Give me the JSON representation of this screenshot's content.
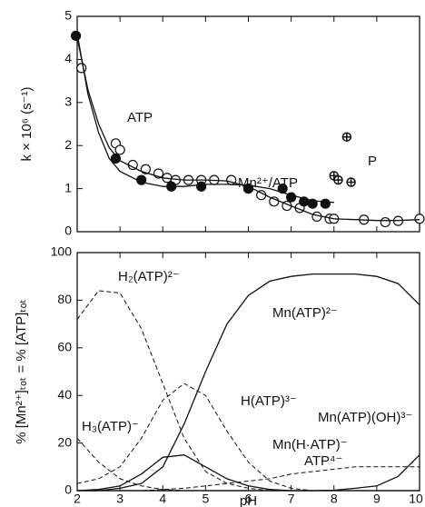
{
  "chart_data": [
    {
      "type": "scatter",
      "y_label": "k × 10⁶ (s⁻¹)",
      "xlim": [
        2,
        10
      ],
      "xticks": [
        2,
        3,
        4,
        5,
        6,
        7,
        8,
        9,
        10
      ],
      "xtick_labels": false,
      "ylim": [
        0,
        5
      ],
      "yticks": [
        0,
        1,
        2,
        3,
        4,
        5
      ],
      "annotations": [
        "P"
      ],
      "series": [
        {
          "name": "ATP",
          "marker": "open",
          "color": "#111",
          "x": [
            2.1,
            2.9,
            3.0,
            3.3,
            3.6,
            3.9,
            4.1,
            4.3,
            4.6,
            4.9,
            5.2,
            5.6,
            6.0,
            6.3,
            6.6,
            6.9,
            7.2,
            7.6,
            7.9,
            8.0,
            8.7,
            9.2,
            9.5,
            10.0
          ],
          "values": [
            3.8,
            2.05,
            1.9,
            1.55,
            1.45,
            1.35,
            1.25,
            1.2,
            1.2,
            1.2,
            1.2,
            1.2,
            1.0,
            0.85,
            0.7,
            0.6,
            0.55,
            0.35,
            0.3,
            0.3,
            0.28,
            0.22,
            0.25,
            0.3
          ]
        },
        {
          "name": "Mn²⁺/ATP",
          "marker": "filled",
          "color": "#111",
          "x": [
            1.97,
            2.9,
            3.5,
            4.2,
            4.9,
            6.0,
            6.8,
            7.0,
            7.3,
            7.5,
            7.8
          ],
          "values": [
            4.55,
            1.7,
            1.2,
            1.05,
            1.05,
            1.0,
            1.0,
            0.8,
            0.7,
            0.65,
            0.65
          ]
        },
        {
          "marker": "crossed",
          "color": "#111",
          "x": [
            8.0,
            8.1,
            8.4,
            8.3
          ],
          "values": [
            1.3,
            1.2,
            1.15,
            2.2
          ]
        },
        {
          "line": "solid",
          "color": "#111",
          "x": [
            2,
            2.25,
            2.5,
            2.75,
            3,
            3.5,
            4,
            4.5,
            5,
            5.5,
            6,
            6.5,
            7,
            7.5,
            8,
            8.5,
            9,
            9.5,
            10
          ],
          "values": [
            4.5,
            3.3,
            2.5,
            1.95,
            1.65,
            1.4,
            1.25,
            1.2,
            1.2,
            1.18,
            1.05,
            0.8,
            0.6,
            0.4,
            0.3,
            0.28,
            0.26,
            0.26,
            0.28
          ]
        },
        {
          "line": "solid",
          "color": "#111",
          "x": [
            2,
            2.25,
            2.5,
            2.75,
            3,
            3.5,
            4,
            4.5,
            5,
            5.5,
            6,
            6.5,
            7,
            7.5,
            8
          ],
          "values": [
            4.6,
            3.2,
            2.3,
            1.7,
            1.4,
            1.15,
            1.05,
            1.05,
            1.1,
            1.1,
            1.08,
            1.0,
            0.85,
            0.72,
            0.68
          ]
        }
      ]
    },
    {
      "type": "line",
      "x_label": "pH",
      "y_label": "% [Mn²⁺]ₜₒₜ = % [ATP]ₜₒₜ",
      "xlim": [
        2,
        10
      ],
      "xticks": [
        2,
        3,
        4,
        5,
        6,
        7,
        8,
        9,
        10
      ],
      "xtick_labels": true,
      "ylim": [
        0,
        100
      ],
      "yticks": [
        0,
        20,
        40,
        60,
        80,
        100
      ],
      "x": [
        2,
        2.5,
        3,
        3.5,
        4,
        4.5,
        5,
        5.5,
        6,
        6.5,
        7,
        7.5,
        8,
        8.5,
        9,
        9.5,
        10
      ],
      "series": [
        {
          "name": "H₂(ATP)²⁻",
          "line": "dashed",
          "color": "#111",
          "values": [
            72,
            84,
            83,
            68,
            45,
            22,
            8,
            3,
            1,
            0,
            0,
            0,
            0,
            0,
            0,
            0,
            0
          ]
        },
        {
          "name": "Mn(ATP)²⁻",
          "line": "solid",
          "color": "#111",
          "values": [
            0,
            0,
            1,
            3,
            10,
            28,
            50,
            70,
            82,
            88,
            90,
            91,
            91,
            91,
            90,
            87,
            78
          ]
        },
        {
          "name": "H(ATP)³⁻",
          "line": "dashed",
          "color": "#111",
          "values": [
            3,
            5,
            10,
            22,
            38,
            45,
            40,
            25,
            12,
            4,
            1,
            0,
            0,
            0,
            0,
            0,
            0
          ]
        },
        {
          "name": "H₃(ATP)⁻",
          "line": "dashed",
          "color": "#111",
          "values": [
            22,
            12,
            5,
            2,
            0.5,
            0,
            0,
            0,
            0,
            0,
            0,
            0,
            0,
            0,
            0,
            0,
            0
          ]
        },
        {
          "name": "Mn(H·ATP)⁻",
          "line": "solid",
          "color": "#111",
          "values": [
            0,
            0.5,
            2,
            7,
            14,
            15,
            10,
            5,
            2,
            0.5,
            0,
            0,
            0,
            0,
            0,
            0,
            0
          ]
        },
        {
          "name": "Mn(ATP)(OH)³⁻",
          "line": "solid",
          "color": "#111",
          "values": [
            0,
            0,
            0,
            0,
            0,
            0,
            0,
            0,
            0,
            0,
            0,
            0,
            0.2,
            1,
            2,
            6,
            15
          ]
        },
        {
          "name": "ATP⁴⁻",
          "line": "dashed",
          "color": "#111",
          "values": [
            0,
            0,
            0,
            0,
            0.5,
            1,
            2,
            3,
            4,
            5,
            7,
            8,
            9,
            10,
            10,
            10,
            10
          ]
        }
      ]
    }
  ]
}
